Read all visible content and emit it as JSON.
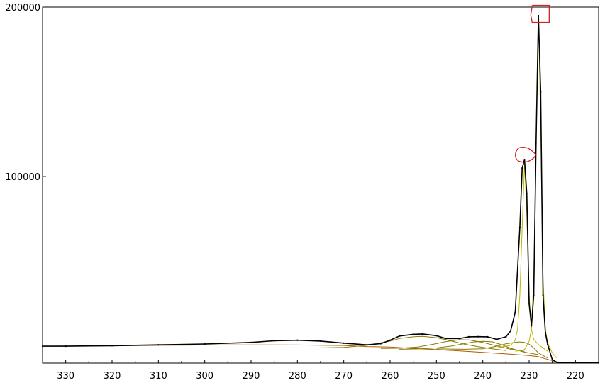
{
  "chart_data": {
    "type": "line",
    "title": "",
    "xlabel": "",
    "ylabel": "",
    "x_reversed": true,
    "xlim": [
      335,
      215
    ],
    "ylim": [
      -10000,
      200000
    ],
    "x_ticks": [
      330,
      320,
      310,
      300,
      290,
      280,
      270,
      260,
      250,
      240,
      230,
      220
    ],
    "y_ticks": [
      100000,
      200000
    ],
    "x_tick_labels": [
      "330",
      "320",
      "310",
      "300",
      "290",
      "280",
      "270",
      "260",
      "250",
      "240",
      "230",
      "220"
    ],
    "y_tick_labels": [
      "100000",
      "200000"
    ],
    "grid": false,
    "legend": "none",
    "colors": {
      "data": "#000000",
      "envelope": "#b8b800",
      "components": "#8a7a00",
      "background": "#b05a00",
      "annotation": "#d42020"
    },
    "series": [
      {
        "role": "measured",
        "x": [
          335,
          330,
          320,
          310,
          300,
          290,
          285,
          280,
          275,
          270,
          265,
          262,
          260,
          258,
          255,
          253,
          250,
          248,
          245,
          243,
          241,
          239,
          237,
          235,
          234,
          233,
          232,
          231.5,
          231,
          230.5,
          230,
          229.5,
          229,
          228.5,
          228,
          227.5,
          227,
          226.5,
          226,
          225,
          224,
          222,
          220,
          215
        ],
        "y": [
          0,
          0,
          300,
          800,
          1300,
          2200,
          3200,
          3500,
          3000,
          1800,
          800,
          1500,
          3500,
          6000,
          7000,
          7200,
          6200,
          4500,
          4500,
          5500,
          5600,
          5500,
          4000,
          5500,
          9000,
          20000,
          70000,
          105000,
          110000,
          90000,
          25000,
          12000,
          30000,
          120000,
          195000,
          150000,
          30000,
          8000,
          1000,
          -8000,
          -9500,
          -9800,
          -9800,
          -9800
        ]
      },
      {
        "role": "peak-1",
        "x": [
          237,
          234,
          233,
          232.5,
          232,
          231.5,
          231,
          230.5,
          230,
          229.5,
          229,
          228,
          226
        ],
        "y": [
          -1000,
          500,
          3500,
          10000,
          30000,
          70000,
          107000,
          80000,
          30000,
          10000,
          4000,
          1000,
          -3000
        ]
      },
      {
        "role": "peak-2",
        "x": [
          233,
          231,
          230,
          229.5,
          229,
          228.5,
          228,
          227.5,
          227,
          226.5,
          226,
          225,
          224
        ],
        "y": [
          -3000,
          -2000,
          3000,
          10000,
          40000,
          120000,
          194000,
          130000,
          40000,
          10000,
          2000,
          -4000,
          -7000
        ]
      },
      {
        "role": "component-a",
        "x": [
          275,
          270,
          265,
          260,
          258,
          255,
          253,
          250,
          247,
          244,
          241,
          238,
          235
        ],
        "y": [
          -1000,
          -700,
          500,
          3000,
          4500,
          5500,
          5800,
          5000,
          3200,
          1200,
          -300,
          -1500,
          -2500
        ]
      },
      {
        "role": "component-b",
        "x": [
          262,
          258,
          254,
          250,
          248,
          245,
          243,
          240,
          237,
          234,
          231
        ],
        "y": [
          -1300,
          -1200,
          -500,
          1500,
          2700,
          3800,
          3700,
          2200,
          200,
          -1800,
          -3000
        ]
      },
      {
        "role": "component-c",
        "x": [
          258,
          254,
          250,
          247,
          244,
          242,
          240,
          238,
          236,
          234,
          231,
          228
        ],
        "y": [
          -1800,
          -1600,
          -1000,
          0,
          1500,
          2500,
          2900,
          2600,
          900,
          -1200,
          -3500,
          -5000
        ]
      },
      {
        "role": "component-d",
        "x": [
          250,
          244,
          240,
          237,
          235,
          233,
          232,
          231,
          230,
          229,
          228,
          226
        ],
        "y": [
          -1600,
          -1800,
          -1500,
          0,
          1400,
          2300,
          2500,
          2200,
          1200,
          -1000,
          -4000,
          -7000
        ]
      },
      {
        "role": "background",
        "x": [
          335,
          320,
          300,
          290,
          280,
          270,
          265,
          260,
          255,
          250,
          245,
          240,
          235,
          230,
          228,
          226,
          224,
          222,
          220,
          215
        ],
        "y": [
          0,
          250,
          700,
          800,
          700,
          400,
          -200,
          -500,
          -1300,
          -2000,
          -2800,
          -3600,
          -4500,
          -5500,
          -6200,
          -7800,
          -9300,
          -9700,
          -9800,
          -9800
        ]
      }
    ],
    "annotations": [
      {
        "type": "circle",
        "x": 231,
        "y": 113000
      },
      {
        "type": "box",
        "x": 227.5,
        "y": 196000
      }
    ]
  }
}
